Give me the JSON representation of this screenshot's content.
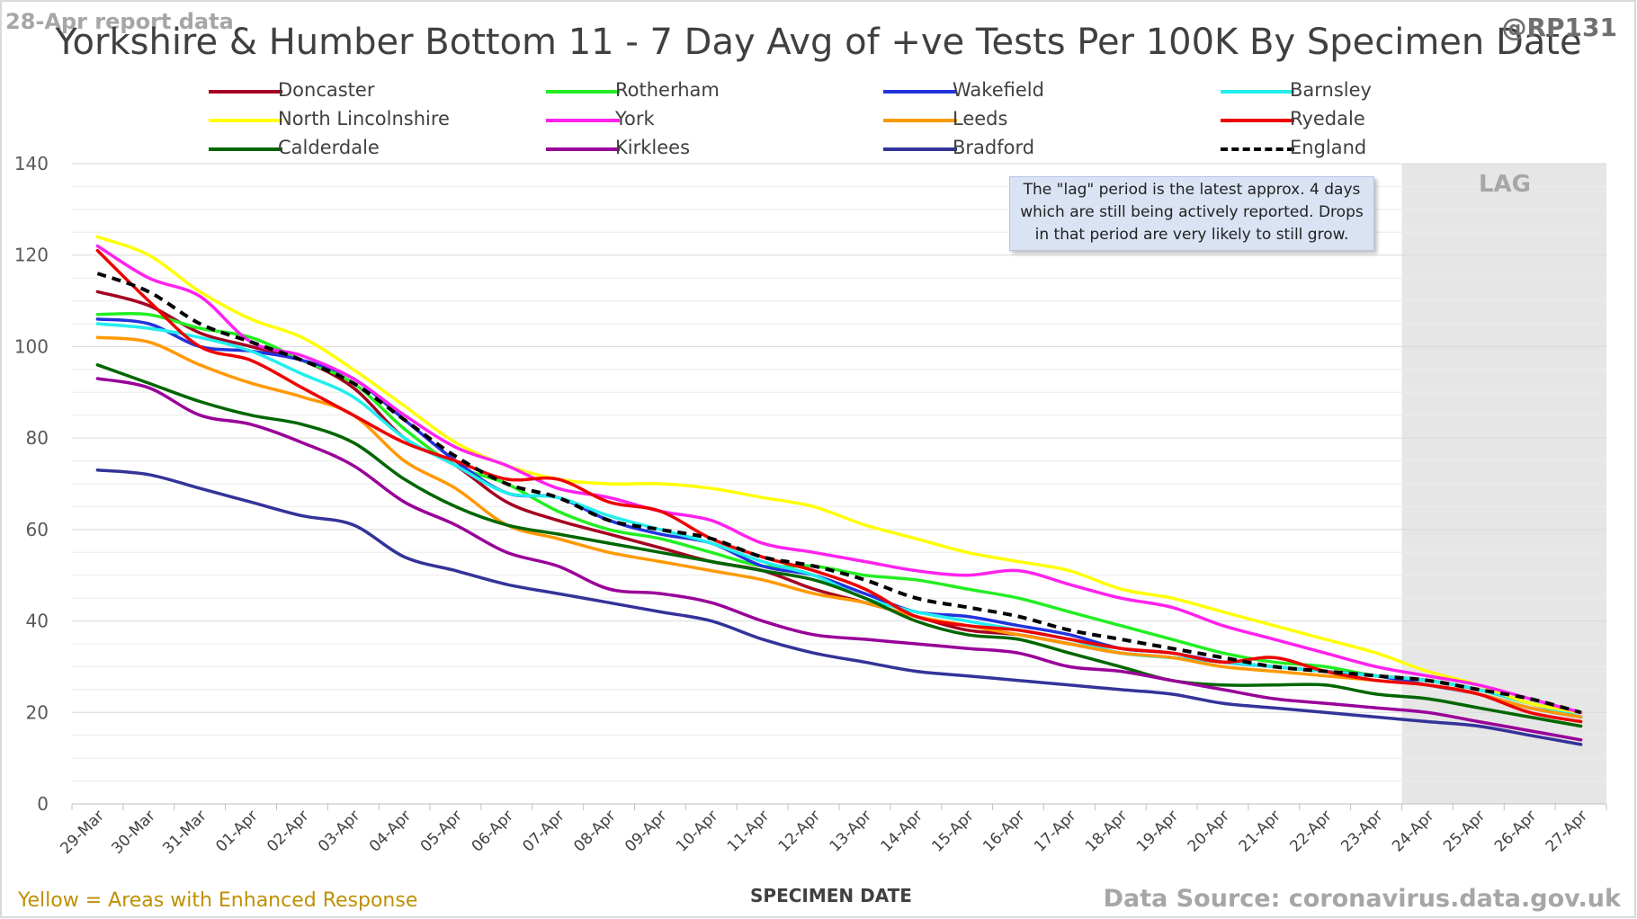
{
  "report_date": "28-Apr report data",
  "handle": "@RP131",
  "footer": {
    "enhanced_note": "Yellow = Areas with Enhanced Response",
    "source": "Data Source: coronavirus.data.gov.uk"
  },
  "annotation": {
    "lag_label": "LAG",
    "lag_note": "The \"lag\" period is the latest approx. 4 days which are still being actively reported.  Drops in that period are very likely to still grow."
  },
  "chart_data": {
    "type": "line",
    "title": "Yorkshire & Humber Bottom 11 - 7 Day Avg of +ve Tests Per 100K By Specimen Date",
    "xlabel": "SPECIMEN DATE",
    "ylabel": "",
    "ylim": [
      0,
      140
    ],
    "yticks": [
      0,
      20,
      40,
      60,
      80,
      100,
      120,
      140
    ],
    "grid": "horizontal",
    "legend_position": "top",
    "lag_start": "24-Apr",
    "lag_end": "27-Apr",
    "categories": [
      "29-Mar",
      "30-Mar",
      "31-Mar",
      "01-Apr",
      "02-Apr",
      "03-Apr",
      "04-Apr",
      "05-Apr",
      "06-Apr",
      "07-Apr",
      "08-Apr",
      "09-Apr",
      "10-Apr",
      "11-Apr",
      "12-Apr",
      "13-Apr",
      "14-Apr",
      "15-Apr",
      "16-Apr",
      "17-Apr",
      "18-Apr",
      "19-Apr",
      "20-Apr",
      "21-Apr",
      "22-Apr",
      "23-Apr",
      "24-Apr",
      "25-Apr",
      "26-Apr",
      "27-Apr"
    ],
    "series": [
      {
        "name": "Doncaster",
        "color": "#a50021",
        "dash": false,
        "values": [
          112,
          109,
          103,
          100,
          97,
          91,
          80,
          74,
          66,
          62,
          59,
          56,
          53,
          51,
          47,
          44,
          41,
          38,
          37,
          35,
          33,
          32,
          31,
          30,
          29,
          28,
          27,
          25,
          22,
          19
        ]
      },
      {
        "name": "Rotherham",
        "color": "#22ee22",
        "dash": false,
        "values": [
          107,
          107,
          104,
          102,
          97,
          92,
          82,
          74,
          70,
          64,
          60,
          58,
          55,
          52,
          52,
          50,
          49,
          47,
          45,
          42,
          39,
          36,
          33,
          31,
          30,
          28,
          27,
          25,
          22,
          20
        ]
      },
      {
        "name": "Wakefield",
        "color": "#2233dd",
        "dash": false,
        "values": [
          106,
          105,
          100,
          99,
          97,
          93,
          84,
          75,
          68,
          67,
          62,
          59,
          57,
          52,
          50,
          46,
          42,
          41,
          39,
          37,
          34,
          33,
          31,
          30,
          29,
          28,
          26,
          24,
          21,
          19
        ]
      },
      {
        "name": "Barnsley",
        "color": "#22eeee",
        "dash": false,
        "values": [
          105,
          104,
          102,
          99,
          94,
          89,
          80,
          74,
          68,
          67,
          63,
          60,
          57,
          53,
          50,
          45,
          42,
          40,
          38,
          36,
          33,
          32,
          31,
          30,
          29,
          28,
          27,
          25,
          22,
          19
        ]
      },
      {
        "name": "North Lincolnshire",
        "color": "#ffff00",
        "dash": false,
        "values": [
          124,
          120,
          112,
          106,
          102,
          95,
          87,
          79,
          74,
          71,
          70,
          70,
          69,
          67,
          65,
          61,
          58,
          55,
          53,
          51,
          47,
          45,
          42,
          39,
          36,
          33,
          29,
          26,
          22,
          20
        ]
      },
      {
        "name": "York",
        "color": "#ff22ee",
        "dash": false,
        "values": [
          122,
          115,
          111,
          101,
          98,
          93,
          85,
          78,
          74,
          69,
          67,
          64,
          62,
          57,
          55,
          53,
          51,
          50,
          51,
          48,
          45,
          43,
          39,
          36,
          33,
          30,
          28,
          26,
          23,
          20
        ]
      },
      {
        "name": "Leeds",
        "color": "#ff9900",
        "dash": false,
        "values": [
          102,
          101,
          96,
          92,
          89,
          85,
          75,
          69,
          61,
          58,
          55,
          53,
          51,
          49,
          46,
          44,
          41,
          39,
          37,
          35,
          33,
          32,
          30,
          29,
          28,
          27,
          26,
          24,
          21,
          19
        ]
      },
      {
        "name": "Ryedale",
        "color": "#ee0000",
        "dash": false,
        "values": [
          121,
          110,
          100,
          97,
          91,
          85,
          79,
          75,
          71,
          71,
          66,
          64,
          58,
          54,
          51,
          47,
          41,
          39,
          38,
          36,
          34,
          33,
          31,
          32,
          29,
          27,
          26,
          24,
          20,
          18
        ]
      },
      {
        "name": "Calderdale",
        "color": "#006600",
        "dash": false,
        "values": [
          96,
          92,
          88,
          85,
          83,
          79,
          71,
          65,
          61,
          59,
          57,
          55,
          53,
          51,
          49,
          45,
          40,
          37,
          36,
          33,
          30,
          27,
          26,
          26,
          26,
          24,
          23,
          21,
          19,
          17
        ]
      },
      {
        "name": "Kirklees",
        "color": "#990099",
        "dash": false,
        "values": [
          93,
          91,
          85,
          83,
          79,
          74,
          66,
          61,
          55,
          52,
          47,
          46,
          44,
          40,
          37,
          36,
          35,
          34,
          33,
          30,
          29,
          27,
          25,
          23,
          22,
          21,
          20,
          18,
          16,
          14
        ]
      },
      {
        "name": "Bradford",
        "color": "#333399",
        "dash": false,
        "values": [
          73,
          72,
          69,
          66,
          63,
          61,
          54,
          51,
          48,
          46,
          44,
          42,
          40,
          36,
          33,
          31,
          29,
          28,
          27,
          26,
          25,
          24,
          22,
          21,
          20,
          19,
          18,
          17,
          15,
          13
        ]
      },
      {
        "name": "England",
        "color": "#000000",
        "dash": true,
        "values": [
          116,
          112,
          105,
          101,
          97,
          92,
          84,
          76,
          70,
          67,
          62,
          60,
          58,
          54,
          52,
          49,
          45,
          43,
          41,
          38,
          36,
          34,
          32,
          30,
          29,
          28,
          27,
          25,
          23,
          20
        ]
      }
    ]
  }
}
